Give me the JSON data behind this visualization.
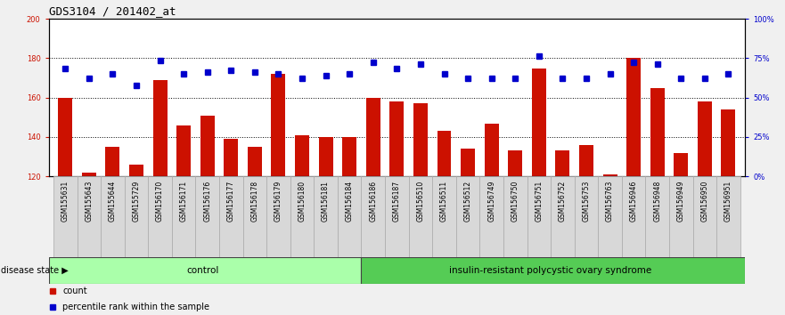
{
  "title": "GDS3104 / 201402_at",
  "samples": [
    "GSM155631",
    "GSM155643",
    "GSM155644",
    "GSM155729",
    "GSM156170",
    "GSM156171",
    "GSM156176",
    "GSM156177",
    "GSM156178",
    "GSM156179",
    "GSM156180",
    "GSM156181",
    "GSM156184",
    "GSM156186",
    "GSM156187",
    "GSM156510",
    "GSM156511",
    "GSM156512",
    "GSM156749",
    "GSM156750",
    "GSM156751",
    "GSM156752",
    "GSM156753",
    "GSM156763",
    "GSM156946",
    "GSM156948",
    "GSM156949",
    "GSM156950",
    "GSM156951"
  ],
  "counts": [
    160,
    122,
    135,
    126,
    169,
    146,
    151,
    139,
    135,
    172,
    141,
    140,
    140,
    160,
    158,
    157,
    143,
    134,
    147,
    133,
    175,
    133,
    136,
    121,
    180,
    165,
    132,
    158,
    154
  ],
  "percentile": [
    175,
    170,
    172,
    166,
    179,
    172,
    173,
    174,
    173,
    172,
    170,
    171,
    172,
    178,
    175,
    177,
    172,
    170,
    170,
    170,
    181,
    170,
    170,
    172,
    178,
    177,
    170,
    170,
    172
  ],
  "control_count": 13,
  "disease_label": "insulin-resistant polycystic ovary syndrome",
  "control_label": "control",
  "disease_state_label": "disease state",
  "bar_color": "#cc1100",
  "dot_color": "#0000cc",
  "ylim_left": [
    120,
    200
  ],
  "ylim_right": [
    0,
    100
  ],
  "yticks_left": [
    120,
    140,
    160,
    180,
    200
  ],
  "yticks_right": [
    0,
    25,
    50,
    75,
    100
  ],
  "ytick_labels_right": [
    "0%",
    "25%",
    "50%",
    "75%",
    "100%"
  ],
  "hlines": [
    140,
    160,
    180
  ],
  "bg_color": "#f0f0f0",
  "bar_color_hex": "#cc1100",
  "dot_color_hex": "#0000cc",
  "title_fontsize": 9,
  "tick_fontsize": 6,
  "label_fontsize": 7.5
}
